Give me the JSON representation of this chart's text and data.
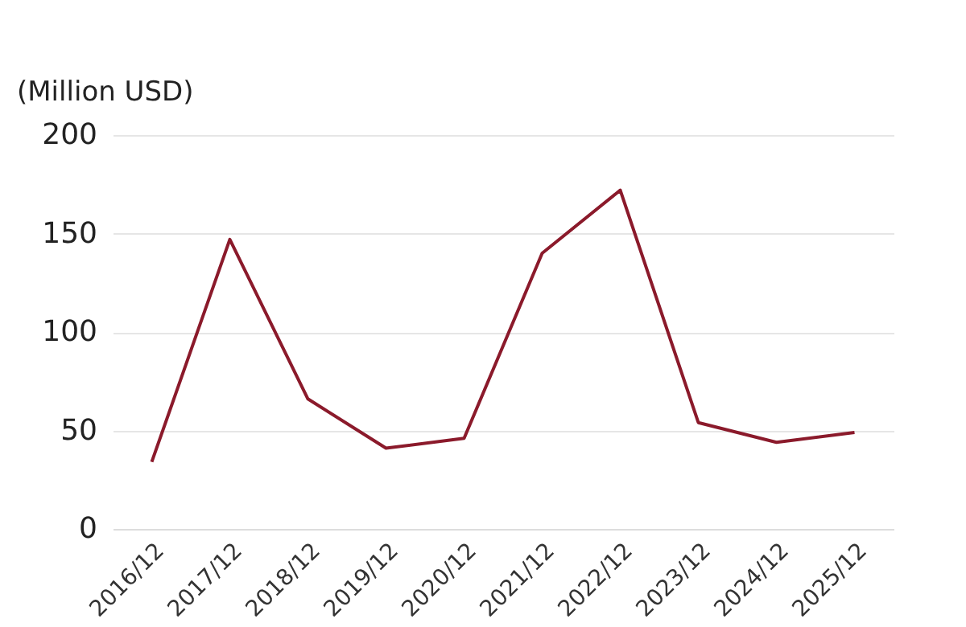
{
  "chart_data": {
    "type": "line",
    "ylabel": "(Million USD)",
    "categories": [
      "2016/12",
      "2017/12",
      "2018/12",
      "2019/12",
      "2020/12",
      "2021/12",
      "2022/12",
      "2023/12",
      "2024/12",
      "2025/12"
    ],
    "series": [
      {
        "color": "#8b1a2b",
        "values": [
          34,
          147,
          66,
          41,
          46,
          140,
          172,
          54,
          44,
          49
        ]
      }
    ],
    "ylim": [
      0,
      200
    ],
    "yticks": [
      0,
      50,
      100,
      150,
      200
    ],
    "grid": "y",
    "legend": false,
    "marker": "none",
    "line_style": "solid"
  }
}
